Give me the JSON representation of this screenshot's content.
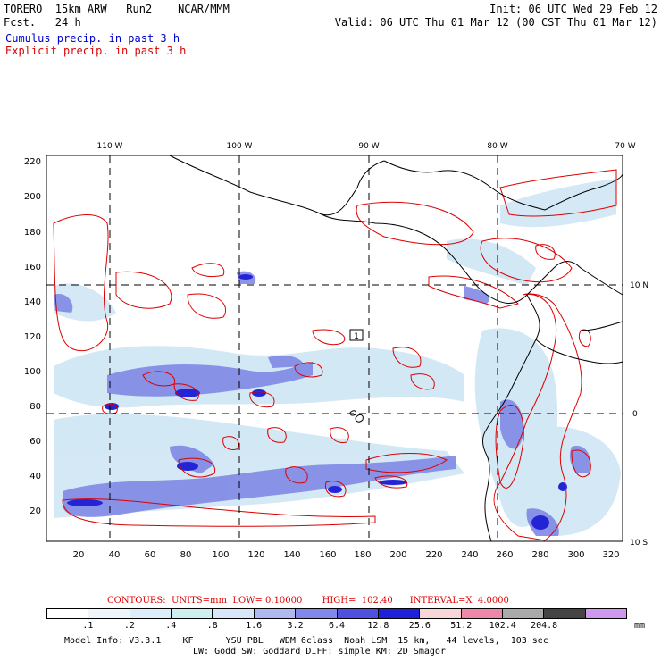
{
  "header": {
    "line1_left": "TORERO  15km ARW   Run2    NCAR/MMM",
    "line1_right": "Init: 06 UTC Wed 29 Feb 12",
    "line2_left": "Fcst.   24 h",
    "line2_right": "Valid: 06 UTC Thu 01 Mar 12 (00 CST Thu 01 Mar 12)",
    "line3": "Cumulus precip. in past 3 h",
    "line4": "Explicit precip. in past 3 h"
  },
  "map": {
    "top_lon_labels": [
      "110 W",
      "100 W",
      "90 W",
      "80 W",
      "70 W"
    ],
    "right_lat_labels": [
      "10 N",
      "0",
      "10 S"
    ],
    "y_ticks": [
      "220",
      "200",
      "180",
      "160",
      "140",
      "120",
      "100",
      "80",
      "60",
      "40",
      "20"
    ],
    "x_ticks": [
      "20",
      "40",
      "60",
      "80",
      "100",
      "120",
      "140",
      "160",
      "180",
      "200",
      "220",
      "240",
      "260",
      "280",
      "300",
      "320"
    ],
    "marker_label": "1",
    "colors": {
      "cumulus": "#3344dd",
      "cumulus_light": "#aabbee",
      "explicit": "#dd0000",
      "coast": "#000000"
    }
  },
  "legend": {
    "contours_text": "CONTOURS:  UNITS=mm  LOW= 0.10000       HIGH=  102.40      INTERVAL=X  4.0000",
    "unit": "mm",
    "bins": [
      "#ffffff",
      "#eef6fa",
      "#ddeefa",
      "#ccf0f0",
      "#d9e6f8",
      "#b0b8f0",
      "#8088e8",
      "#5050e0",
      "#2020d8",
      "#f6d6d6",
      "#ee88aa",
      "#aaaaaa",
      "#444444",
      "#cc99ee"
    ],
    "labels": [
      ".1",
      ".2",
      ".4",
      ".8",
      "1.6",
      "3.2",
      "6.4",
      "12.8",
      "25.6",
      "51.2",
      "102.4",
      "204.8"
    ]
  },
  "footer": {
    "line1": "Model Info: V3.3.1    KF      YSU PBL   WDM 6class  Noah LSM  15 km,   44 levels,  103 sec",
    "line2": "LW: Godd SW: Goddard DIFF: simple KM: 2D Smagor"
  }
}
